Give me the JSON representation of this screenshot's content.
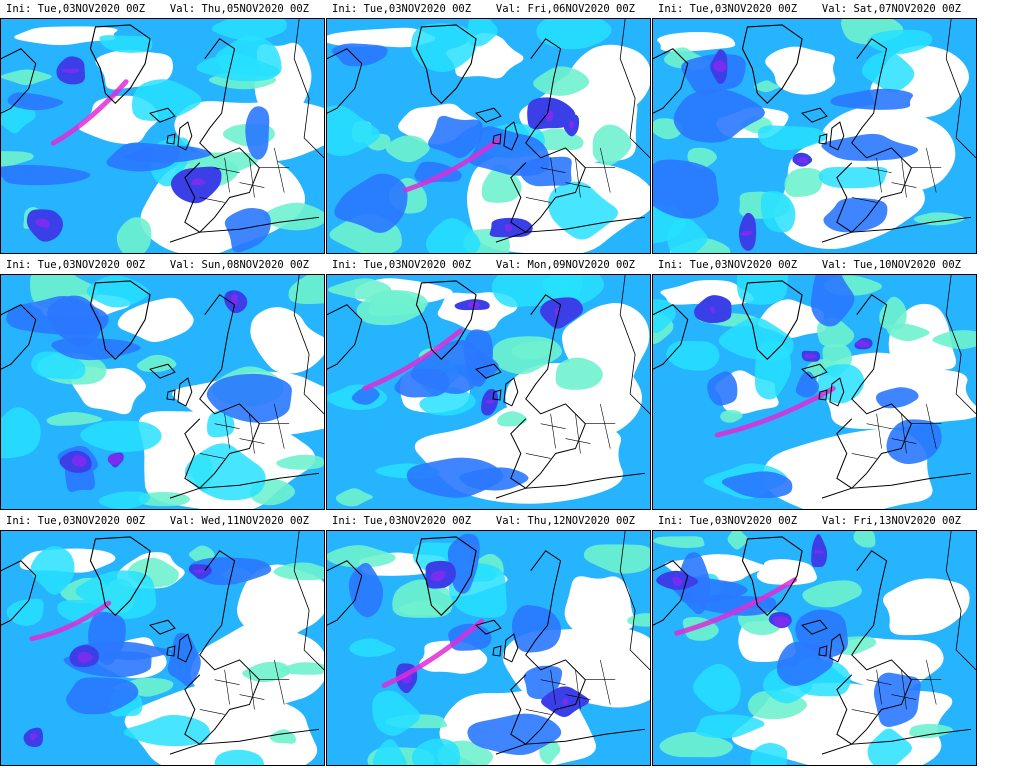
{
  "colors": {
    "cyan_light": "#6ff2cf",
    "cyan": "#27e0ff",
    "sky": "#27b4ff",
    "blue": "#2a78ff",
    "deep_blue": "#3b3fe8",
    "violet": "#7a2df0",
    "magenta": "#e02cd7",
    "border": "#000000"
  },
  "panels": [
    {
      "ini": "Ini: Tue,03NOV2020 00Z",
      "val": "Val: Thu,05NOV2020 00Z"
    },
    {
      "ini": "Ini: Tue,03NOV2020 00Z",
      "val": "Val: Fri,06NOV2020 00Z"
    },
    {
      "ini": "Ini: Tue,03NOV2020 00Z",
      "val": "Val: Sat,07NOV2020 00Z"
    },
    {
      "ini": "Ini: Tue,03NOV2020 00Z",
      "val": "Val: Sun,08NOV2020 00Z"
    },
    {
      "ini": "Ini: Tue,03NOV2020 00Z",
      "val": "Val: Mon,09NOV2020 00Z"
    },
    {
      "ini": "Ini: Tue,03NOV2020 00Z",
      "val": "Val: Tue,10NOV2020 00Z"
    },
    {
      "ini": "Ini: Tue,03NOV2020 00Z",
      "val": "Val: Wed,11NOV2020 00Z"
    },
    {
      "ini": "Ini: Tue,03NOV2020 00Z",
      "val": "Val: Thu,12NOV2020 00Z"
    },
    {
      "ini": "Ini: Tue,03NOV2020 00Z",
      "val": "Val: Fri,13NOV2020 00Z"
    }
  ]
}
